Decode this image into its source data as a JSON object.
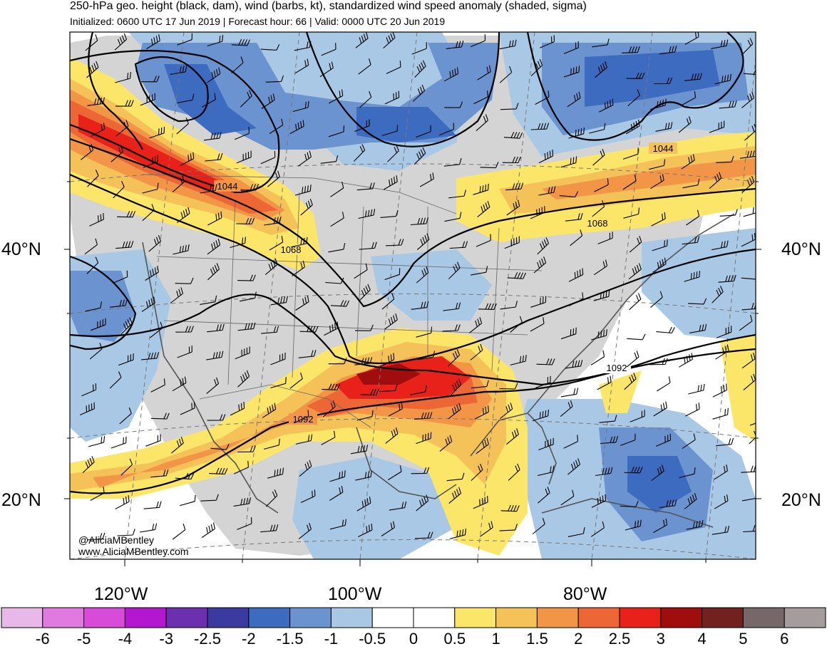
{
  "title": "250-hPa geo. height (black, dam), wind (barbs, kt), standardized wind speed anomaly (shaded, sigma)",
  "subtitle": "Initialized: 0600 UTC 17 Jun 2019 | Forecast hour: 66 | Valid: 0000 UTC 20 Jun 2019",
  "lat_labels": {
    "n40": "40°N",
    "n20": "20°N"
  },
  "lon_labels": {
    "w120": "120°W",
    "w100": "100°W",
    "w80": "80°W"
  },
  "contour_labels": [
    "1044",
    "1068",
    "1092",
    "1044",
    "1068",
    "1092"
  ],
  "credit": {
    "handle": "@AliciaMBentley",
    "site": "www.AliciaMBentley.com"
  },
  "colorbar": {
    "colors": [
      "#e8b8e8",
      "#e07ae0",
      "#d84ad8",
      "#b317d0",
      "#6b2fb0",
      "#3a3aa0",
      "#3d6bc0",
      "#6a93d0",
      "#a8c8e6",
      "#ffffff",
      "#ffffff",
      "#fbe66a",
      "#f5c25a",
      "#f29547",
      "#ed6635",
      "#e8211a",
      "#a00d0d",
      "#73211e",
      "#766868",
      "#a59d9d"
    ],
    "labels": [
      "-6",
      "-5",
      "-4",
      "-3",
      "-2.5",
      "-2",
      "-1.5",
      "-1",
      "-0.5",
      "0",
      "0.5",
      "1",
      "1.5",
      "2",
      "2.5",
      "3",
      "4",
      "5",
      "6"
    ]
  },
  "fill_colors": {
    "gray": "#d4d4d4",
    "lblue": "#a8c8e6",
    "mblue": "#6a93d0",
    "dblue": "#3d6bc0",
    "yellow": "#fbe66a",
    "lorange": "#f5c25a",
    "orange": "#f29547",
    "red": "#ed6635",
    "bred": "#e8211a",
    "dred": "#a00d0d"
  }
}
